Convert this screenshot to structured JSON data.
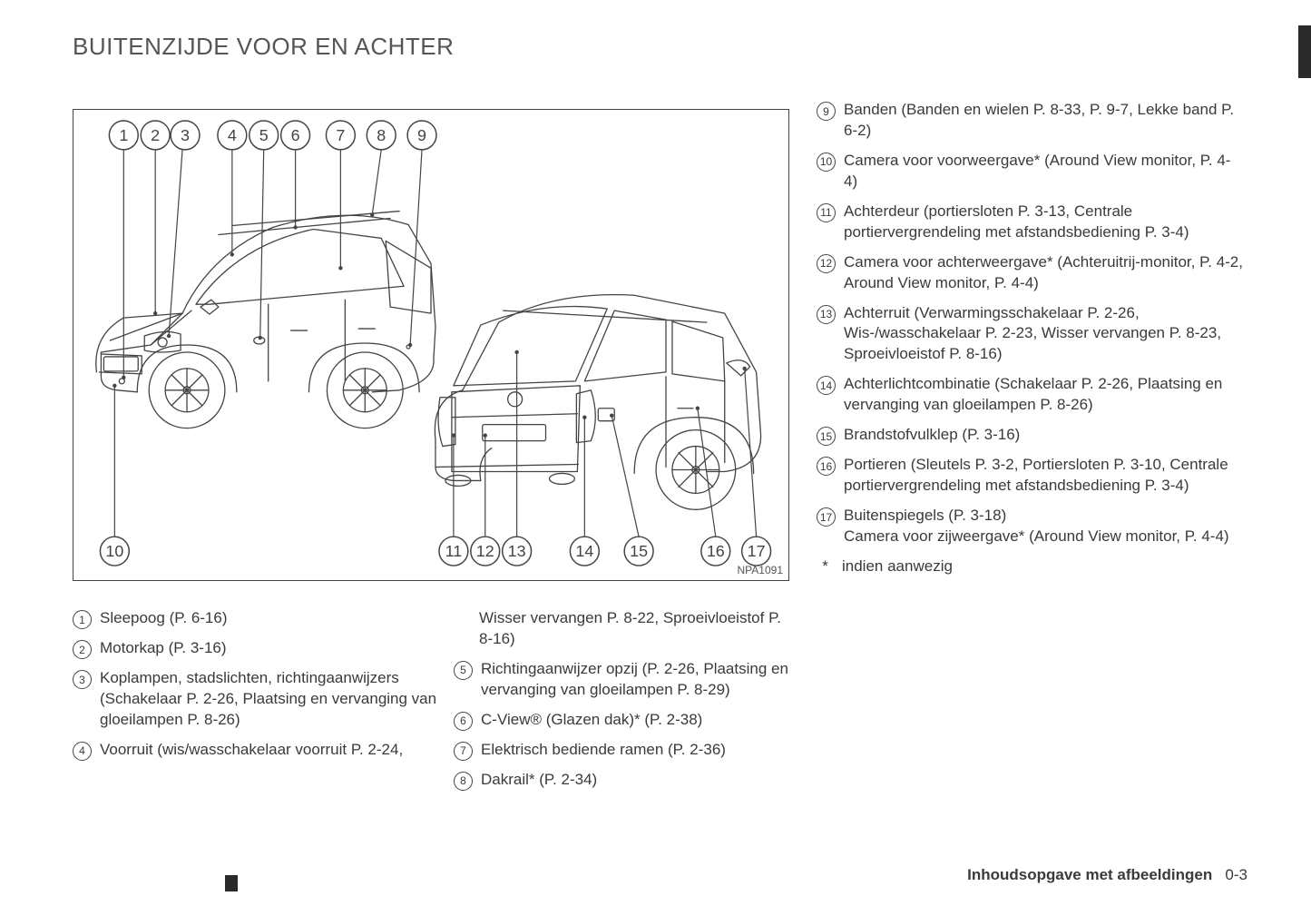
{
  "title": "BUITENZIJDE VOOR EN ACHTER",
  "diagram": {
    "code": "NPA1091",
    "top_labels": [
      "1",
      "2",
      "3",
      "4",
      "5",
      "6",
      "7",
      "8",
      "9"
    ],
    "bottom_labels": [
      "10",
      "11",
      "12",
      "13",
      "14",
      "15",
      "16",
      "17"
    ],
    "callout_stroke": "#444444",
    "callout_fill": "#ffffff",
    "callout_radius": 16,
    "car_stroke": "#444444"
  },
  "columns": {
    "col1": [
      {
        "n": "1",
        "text": "Sleepoog (P. 6-16)"
      },
      {
        "n": "2",
        "text": "Motorkap (P. 3-16)"
      },
      {
        "n": "3",
        "text": "Koplampen, stadslichten, richtingaanwijzers (Schakelaar P. 2-26, Plaatsing en vervanging van gloeilampen P. 8-26)"
      },
      {
        "n": "4",
        "text": "Voorruit (wis/wasschakelaar voorruit P. 2-24,"
      }
    ],
    "col2": [
      {
        "n": "",
        "text": "Wisser vervangen P. 8-22, Sproeivloeistof P. 8-16)"
      },
      {
        "n": "5",
        "text": "Richtingaanwijzer opzij (P. 2-26, Plaatsing en vervanging van gloeilampen P. 8-29)"
      },
      {
        "n": "6",
        "text": "C-View® (Glazen dak)* (P. 2-38)"
      },
      {
        "n": "7",
        "text": "Elektrisch bediende ramen (P. 2-36)"
      },
      {
        "n": "8",
        "text": "Dakrail* (P. 2-34)"
      }
    ],
    "col3": [
      {
        "n": "9",
        "text": "Banden (Banden en wielen P. 8-33, P. 9-7, Lekke band P. 6-2)"
      },
      {
        "n": "10",
        "text": "Camera voor voorweergave* (Around View monitor, P. 4-4)"
      },
      {
        "n": "11",
        "text": "Achterdeur (portiersloten P. 3-13, Centrale portiervergrendeling met afstandsbediening P. 3-4)"
      },
      {
        "n": "12",
        "text": "Camera voor achterweergave* (Achteruitrij-monitor, P. 4-2, Around View monitor, P. 4-4)"
      },
      {
        "n": "13",
        "text": "Achterruit (Verwarmingsschakelaar P. 2-26, Wis-/wasschakelaar P. 2-23, Wisser vervangen P. 8-23, Sproeivloeistof P. 8-16)"
      },
      {
        "n": "14",
        "text": "Achterlichtcombinatie (Schakelaar P. 2-26, Plaatsing en vervanging van gloeilampen P. 8-26)"
      },
      {
        "n": "15",
        "text": "Brandstofvulklep (P. 3-16)"
      },
      {
        "n": "16",
        "text": "Portieren (Sleutels P. 3-2, Portiersloten P. 3-10, Centrale portiervergrendeling met afstandsbediening P. 3-4)"
      },
      {
        "n": "17",
        "text": "Buitenspiegels (P. 3-18)\nCamera voor zijweergave* (Around View monitor, P. 4-4)"
      },
      {
        "n": "*",
        "text": "indien aanwezig"
      }
    ]
  },
  "footer": {
    "label": "Inhoudsopgave met afbeeldingen",
    "page": "0-3"
  }
}
